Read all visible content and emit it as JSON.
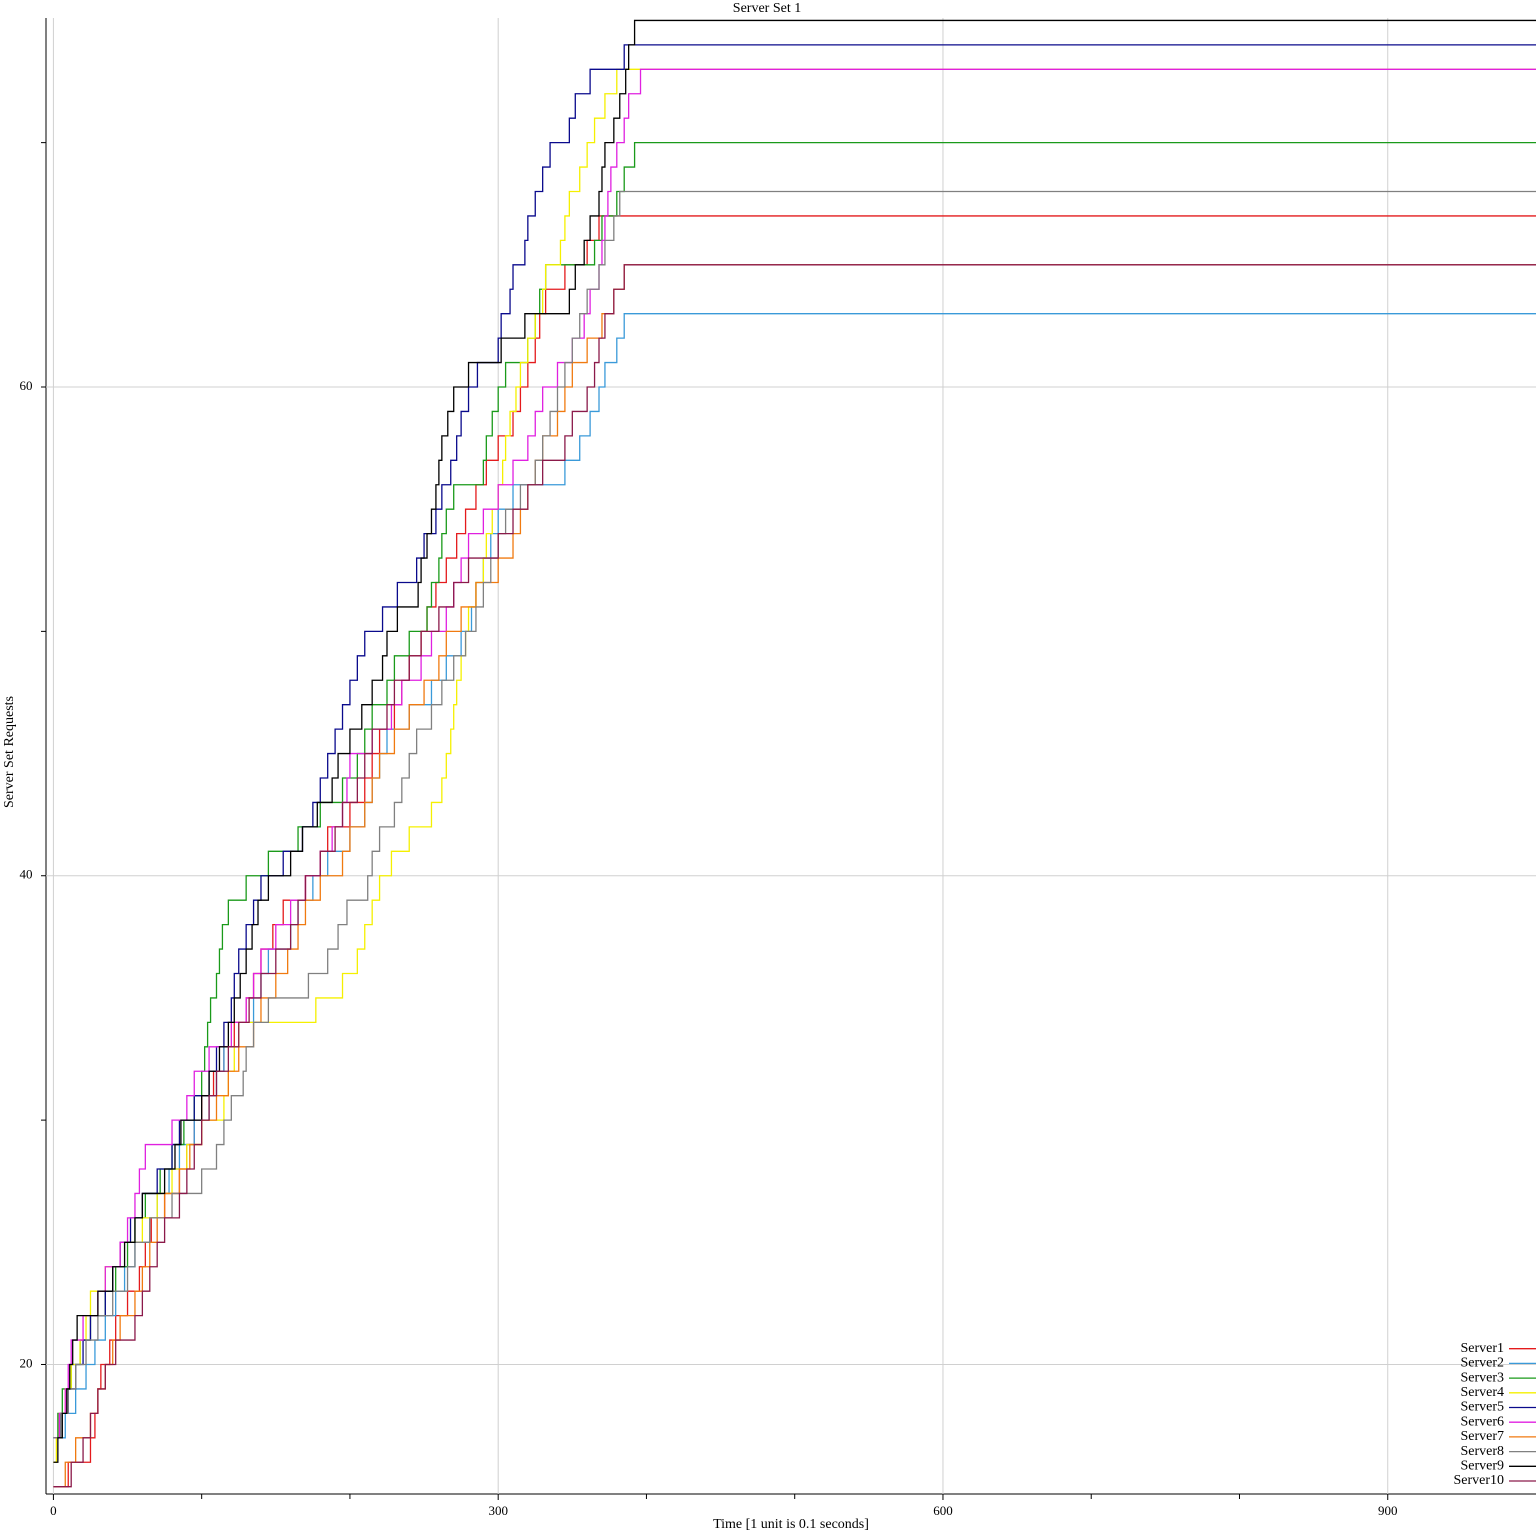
{
  "chart_data": {
    "type": "step",
    "title": "Server Set 1",
    "x_label": "Time [1 unit is 0.1 seconds]",
    "y_label": "Server Set Requests",
    "xlim": [
      -5,
      1000
    ],
    "ylim": [
      14.7,
      75.1
    ],
    "xticks": [
      0,
      300,
      600,
      900
    ],
    "yticks": [
      20,
      40,
      60
    ],
    "xminorticks": [
      100,
      200,
      400,
      500,
      700,
      800
    ],
    "yminorticks": [
      30,
      50,
      70
    ],
    "grid": true,
    "legend": "lower right",
    "series": [
      {
        "name": "Server1",
        "color": "#e41a1c",
        "x": [
          0,
          10,
          25,
          28,
          30,
          32,
          38,
          42,
          50,
          58,
          62,
          66,
          75,
          85,
          90,
          95,
          100,
          108,
          115,
          122,
          130,
          135,
          140,
          148,
          155,
          170,
          180,
          185,
          200,
          210,
          215,
          220,
          230,
          235,
          240,
          248,
          252,
          258,
          265,
          272,
          278,
          285,
          292,
          300,
          310,
          315,
          320,
          325,
          328,
          332,
          345,
          360,
          368,
          1000
        ],
        "values": [
          15,
          16,
          17,
          18,
          19,
          20,
          21,
          22,
          23,
          24,
          25,
          26,
          27,
          28,
          29,
          30,
          31,
          32,
          33,
          34,
          35,
          36,
          37,
          38,
          39,
          40,
          41,
          42,
          43,
          44,
          45,
          46,
          47,
          48,
          49,
          50,
          51,
          52,
          53,
          54,
          55,
          56,
          57,
          58,
          59,
          60,
          61,
          62,
          63,
          64,
          65,
          66,
          67,
          67
        ]
      },
      {
        "name": "Server2",
        "color": "#3a9ad9",
        "x": [
          0,
          8,
          15,
          22,
          28,
          35,
          42,
          48,
          55,
          65,
          70,
          78,
          85,
          95,
          105,
          110,
          115,
          125,
          135,
          140,
          145,
          160,
          165,
          175,
          185,
          200,
          210,
          215,
          220,
          225,
          240,
          255,
          265,
          275,
          282,
          285,
          290,
          295,
          300,
          310,
          345,
          355,
          362,
          368,
          372,
          380,
          385,
          1000
        ],
        "values": [
          17,
          18,
          19,
          20,
          21,
          22,
          23,
          24,
          25,
          26,
          27,
          28,
          29,
          30,
          31,
          32,
          33,
          34,
          35,
          36,
          37,
          38,
          39,
          40,
          41,
          42,
          43,
          44,
          45,
          46,
          47,
          48,
          49,
          50,
          51,
          52,
          53,
          54,
          55,
          56,
          57,
          58,
          59,
          60,
          61,
          62,
          63,
          63
        ]
      },
      {
        "name": "Server3",
        "color": "#1a9a1a",
        "x": [
          0,
          3,
          6,
          12,
          18,
          25,
          35,
          42,
          50,
          55,
          62,
          72,
          80,
          88,
          95,
          100,
          102,
          104,
          106,
          110,
          112,
          114,
          118,
          130,
          145,
          165,
          180,
          195,
          205,
          210,
          215,
          225,
          230,
          240,
          252,
          255,
          260,
          262,
          265,
          270,
          290,
          292,
          296,
          300,
          305,
          320,
          325,
          328,
          332,
          365,
          370,
          380,
          385,
          392,
          1000
        ],
        "values": [
          17,
          18,
          19,
          20,
          21,
          22,
          23,
          24,
          25,
          26,
          27,
          28,
          29,
          30,
          31,
          32,
          33,
          34,
          35,
          36,
          37,
          38,
          39,
          40,
          41,
          42,
          43,
          44,
          45,
          46,
          47,
          48,
          49,
          50,
          51,
          52,
          53,
          54,
          55,
          56,
          57,
          58,
          59,
          60,
          61,
          62,
          63,
          64,
          65,
          66,
          67,
          68,
          69,
          70,
          70
        ]
      },
      {
        "name": "Server4",
        "color": "#f5f000",
        "x": [
          0,
          2,
          4,
          8,
          12,
          18,
          22,
          25,
          35,
          45,
          60,
          70,
          80,
          90,
          100,
          115,
          118,
          122,
          125,
          177,
          195,
          205,
          210,
          215,
          220,
          228,
          240,
          255,
          262,
          265,
          268,
          270,
          272,
          275,
          278,
          280,
          285,
          290,
          292,
          296,
          300,
          303,
          305,
          308,
          312,
          315,
          320,
          325,
          330,
          332,
          342,
          345,
          348,
          355,
          360,
          365,
          372,
          380,
          1000
        ],
        "values": [
          16,
          17,
          18,
          19,
          20,
          21,
          22,
          23,
          24,
          25,
          26,
          27,
          28,
          29,
          30,
          31,
          32,
          33,
          34,
          35,
          36,
          37,
          38,
          39,
          40,
          41,
          42,
          43,
          44,
          45,
          46,
          47,
          48,
          49,
          50,
          51,
          52,
          53,
          54,
          55,
          56,
          57,
          58,
          59,
          60,
          61,
          62,
          63,
          64,
          65,
          66,
          67,
          68,
          69,
          70,
          71,
          72,
          73,
          73
        ]
      },
      {
        "name": "Server5",
        "color": "#0a0a8c",
        "x": [
          0,
          5,
          10,
          15,
          20,
          25,
          35,
          40,
          45,
          52,
          60,
          70,
          80,
          85,
          95,
          105,
          110,
          115,
          120,
          122,
          125,
          130,
          135,
          140,
          155,
          168,
          175,
          180,
          185,
          190,
          195,
          200,
          205,
          210,
          222,
          232,
          245,
          250,
          258,
          262,
          268,
          272,
          275,
          280,
          286,
          300,
          302,
          308,
          310,
          318,
          320,
          325,
          330,
          335,
          348,
          352,
          362,
          385,
          1000
        ],
        "values": [
          17,
          18,
          19,
          20,
          21,
          22,
          23,
          24,
          25,
          26,
          27,
          28,
          29,
          30,
          31,
          32,
          33,
          34,
          35,
          36,
          37,
          38,
          39,
          40,
          41,
          42,
          43,
          44,
          45,
          46,
          47,
          48,
          49,
          50,
          51,
          52,
          53,
          54,
          55,
          56,
          57,
          58,
          59,
          60,
          61,
          62,
          63,
          64,
          65,
          66,
          67,
          68,
          69,
          70,
          71,
          72,
          73,
          74,
          74
        ]
      },
      {
        "name": "Server6",
        "color": "#e020e0",
        "x": [
          0,
          4,
          8,
          10,
          12,
          20,
          30,
          35,
          45,
          50,
          55,
          58,
          62,
          80,
          90,
          95,
          105,
          120,
          130,
          135,
          140,
          150,
          160,
          170,
          180,
          188,
          195,
          198,
          200,
          215,
          228,
          235,
          248,
          255,
          265,
          270,
          275,
          280,
          290,
          300,
          310,
          320,
          325,
          330,
          340,
          350,
          358,
          362,
          368,
          370,
          372,
          374,
          376,
          380,
          385,
          388,
          396,
          1000
        ],
        "values": [
          17,
          18,
          19,
          20,
          21,
          22,
          23,
          24,
          25,
          26,
          27,
          28,
          29,
          30,
          31,
          32,
          33,
          34,
          35,
          36,
          37,
          38,
          39,
          40,
          41,
          42,
          43,
          44,
          45,
          46,
          47,
          48,
          49,
          50,
          51,
          52,
          53,
          54,
          55,
          56,
          57,
          58,
          59,
          60,
          61,
          62,
          63,
          64,
          65,
          66,
          67,
          68,
          69,
          70,
          71,
          72,
          73,
          73
        ]
      },
      {
        "name": "Server7",
        "color": "#f07a10",
        "x": [
          5,
          8,
          15,
          25,
          30,
          35,
          40,
          45,
          55,
          60,
          65,
          70,
          75,
          85,
          92,
          100,
          110,
          118,
          125,
          135,
          140,
          150,
          158,
          165,
          170,
          180,
          195,
          200,
          210,
          215,
          220,
          230,
          240,
          250,
          260,
          265,
          275,
          285,
          300,
          310,
          315,
          320,
          325,
          330,
          340,
          345,
          350,
          360,
          370,
          378,
          385,
          1000
        ],
        "values": [
          15,
          16,
          17,
          18,
          19,
          20,
          21,
          22,
          23,
          24,
          25,
          26,
          27,
          28,
          29,
          30,
          31,
          32,
          33,
          34,
          35,
          36,
          37,
          38,
          39,
          40,
          41,
          42,
          43,
          44,
          45,
          46,
          47,
          48,
          49,
          50,
          51,
          52,
          53,
          54,
          55,
          56,
          57,
          58,
          59,
          60,
          61,
          62,
          63,
          64,
          65,
          65
        ]
      },
      {
        "name": "Server8",
        "color": "#808080",
        "x": [
          0,
          5,
          10,
          15,
          22,
          30,
          40,
          50,
          55,
          65,
          80,
          100,
          110,
          115,
          120,
          128,
          130,
          135,
          145,
          172,
          185,
          192,
          198,
          212,
          215,
          220,
          230,
          235,
          240,
          245,
          255,
          262,
          270,
          278,
          285,
          290,
          295,
          300,
          305,
          315,
          325,
          330,
          335,
          340,
          345,
          350,
          355,
          360,
          368,
          372,
          378,
          382,
          1000
        ],
        "values": [
          17,
          18,
          19,
          20,
          21,
          22,
          23,
          24,
          25,
          26,
          27,
          28,
          29,
          30,
          31,
          32,
          33,
          34,
          35,
          36,
          37,
          38,
          39,
          40,
          41,
          42,
          43,
          44,
          45,
          46,
          47,
          48,
          49,
          50,
          51,
          52,
          53,
          54,
          55,
          56,
          57,
          58,
          59,
          60,
          61,
          62,
          63,
          64,
          65,
          66,
          67,
          68,
          68
        ]
      },
      {
        "name": "Server9",
        "color": "#000000",
        "x": [
          0,
          3,
          6,
          9,
          11,
          13,
          16,
          30,
          40,
          48,
          55,
          60,
          75,
          82,
          86,
          100,
          105,
          112,
          118,
          122,
          126,
          130,
          134,
          138,
          145,
          160,
          168,
          178,
          188,
          192,
          200,
          208,
          215,
          222,
          225,
          232,
          246,
          248,
          252,
          255,
          258,
          260,
          262,
          266,
          270,
          280,
          302,
          318,
          348,
          352,
          358,
          362,
          368,
          370,
          372,
          378,
          382,
          386,
          388,
          392,
          1000
        ],
        "values": [
          16,
          17,
          18,
          19,
          20,
          21,
          22,
          23,
          24,
          25,
          26,
          27,
          28,
          29,
          30,
          31,
          32,
          33,
          34,
          35,
          36,
          37,
          38,
          39,
          40,
          41,
          42,
          43,
          44,
          45,
          46,
          47,
          48,
          49,
          50,
          51,
          52,
          53,
          54,
          55,
          56,
          57,
          58,
          59,
          60,
          61,
          62,
          63,
          64,
          65,
          66,
          67,
          68,
          69,
          70,
          71,
          72,
          73,
          74,
          75,
          75
        ]
      },
      {
        "name": "Server10",
        "color": "#8b1a4a",
        "x": [
          0,
          12,
          20,
          25,
          30,
          35,
          42,
          55,
          60,
          65,
          70,
          75,
          85,
          90,
          95,
          100,
          105,
          110,
          118,
          125,
          132,
          140,
          150,
          160,
          165,
          170,
          180,
          190,
          195,
          205,
          210,
          215,
          225,
          230,
          240,
          248,
          260,
          270,
          280,
          300,
          310,
          320,
          330,
          345,
          350,
          360,
          365,
          368,
          372,
          378,
          385,
          1000
        ],
        "values": [
          15,
          16,
          17,
          18,
          19,
          20,
          21,
          22,
          23,
          24,
          25,
          26,
          27,
          28,
          29,
          30,
          31,
          32,
          33,
          34,
          35,
          36,
          37,
          38,
          39,
          40,
          41,
          42,
          43,
          44,
          45,
          46,
          47,
          48,
          49,
          50,
          51,
          52,
          53,
          54,
          55,
          56,
          57,
          58,
          59,
          60,
          61,
          62,
          63,
          64,
          65,
          65
        ]
      }
    ]
  }
}
